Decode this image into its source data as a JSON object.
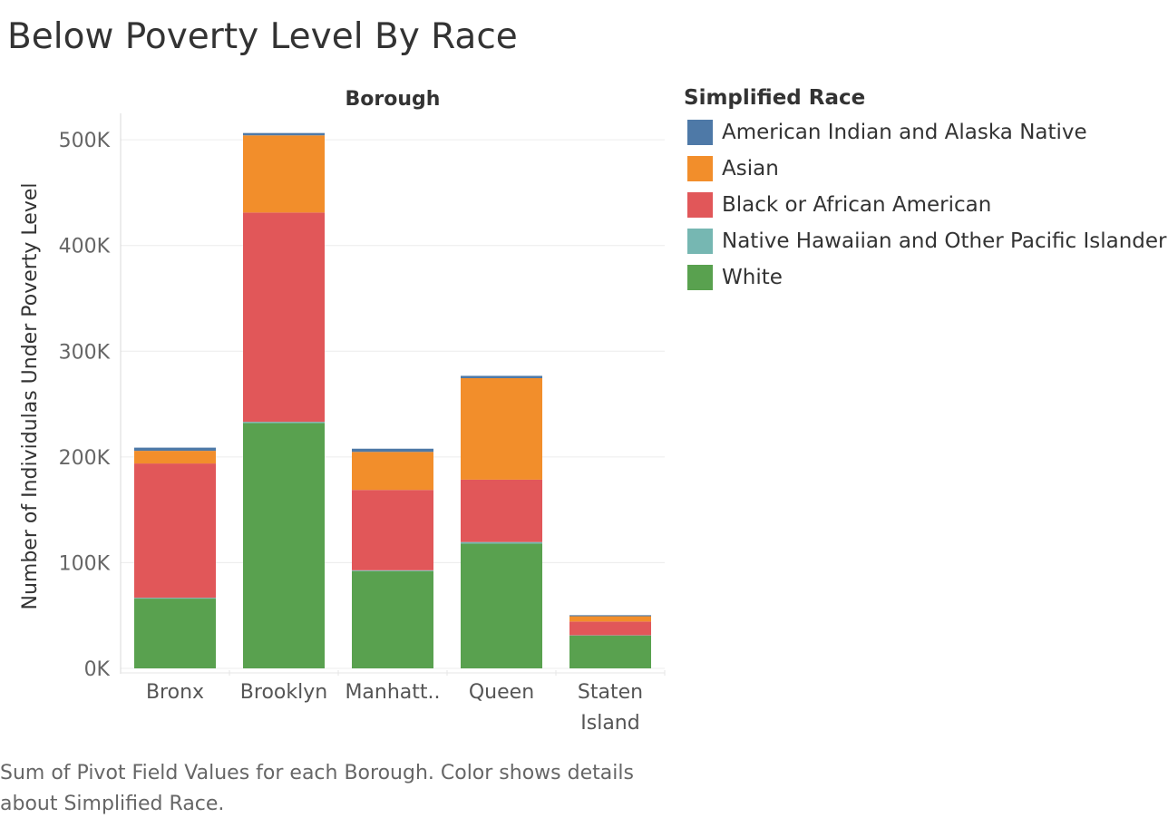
{
  "title": "Below Poverty Level By Race",
  "caption": "Sum of Pivot Field Values for each Borough.  Color shows details about Simplified Race.",
  "legend": {
    "title": "Simplified Race",
    "items": [
      {
        "label": "American Indian and Alaska Native",
        "color": "#4e79a7"
      },
      {
        "label": "Asian",
        "color": "#f28e2b"
      },
      {
        "label": "Black or African American",
        "color": "#e15759"
      },
      {
        "label": "Native Hawaiian and Other Pacific Islander",
        "color": "#76b7b2"
      },
      {
        "label": "White",
        "color": "#59a14f"
      }
    ]
  },
  "chart_data": {
    "type": "bar",
    "stacked": true,
    "title": "Below Poverty Level By Race",
    "column_header": "Borough",
    "xlabel": "",
    "ylabel": "Number of Individulas Under Poverty Level",
    "ylim": [
      0,
      525000
    ],
    "yticks": [
      0,
      100000,
      200000,
      300000,
      400000,
      500000
    ],
    "ytick_labels": [
      "0K",
      "100K",
      "200K",
      "300K",
      "400K",
      "500K"
    ],
    "grid": true,
    "legend_position": "right",
    "categories": [
      "Bronx",
      "Brooklyn",
      "Manhatt..",
      "Queen",
      "Staten\nIsland"
    ],
    "series": [
      {
        "name": "White",
        "color": "#59a14f",
        "values": [
          66000,
          232000,
          92000,
          118000,
          31000
        ]
      },
      {
        "name": "Native Hawaiian and Other Pacific Islander",
        "color": "#76b7b2",
        "values": [
          800,
          1200,
          800,
          1500,
          300
        ]
      },
      {
        "name": "Black or African American",
        "color": "#e15759",
        "values": [
          127000,
          198000,
          76000,
          59000,
          13000
        ]
      },
      {
        "name": "Asian",
        "color": "#f28e2b",
        "values": [
          12000,
          73000,
          36000,
          96000,
          5000
        ]
      },
      {
        "name": "American Indian and Alaska Native",
        "color": "#4e79a7",
        "values": [
          3000,
          2200,
          3000,
          2200,
          1000
        ]
      }
    ]
  }
}
